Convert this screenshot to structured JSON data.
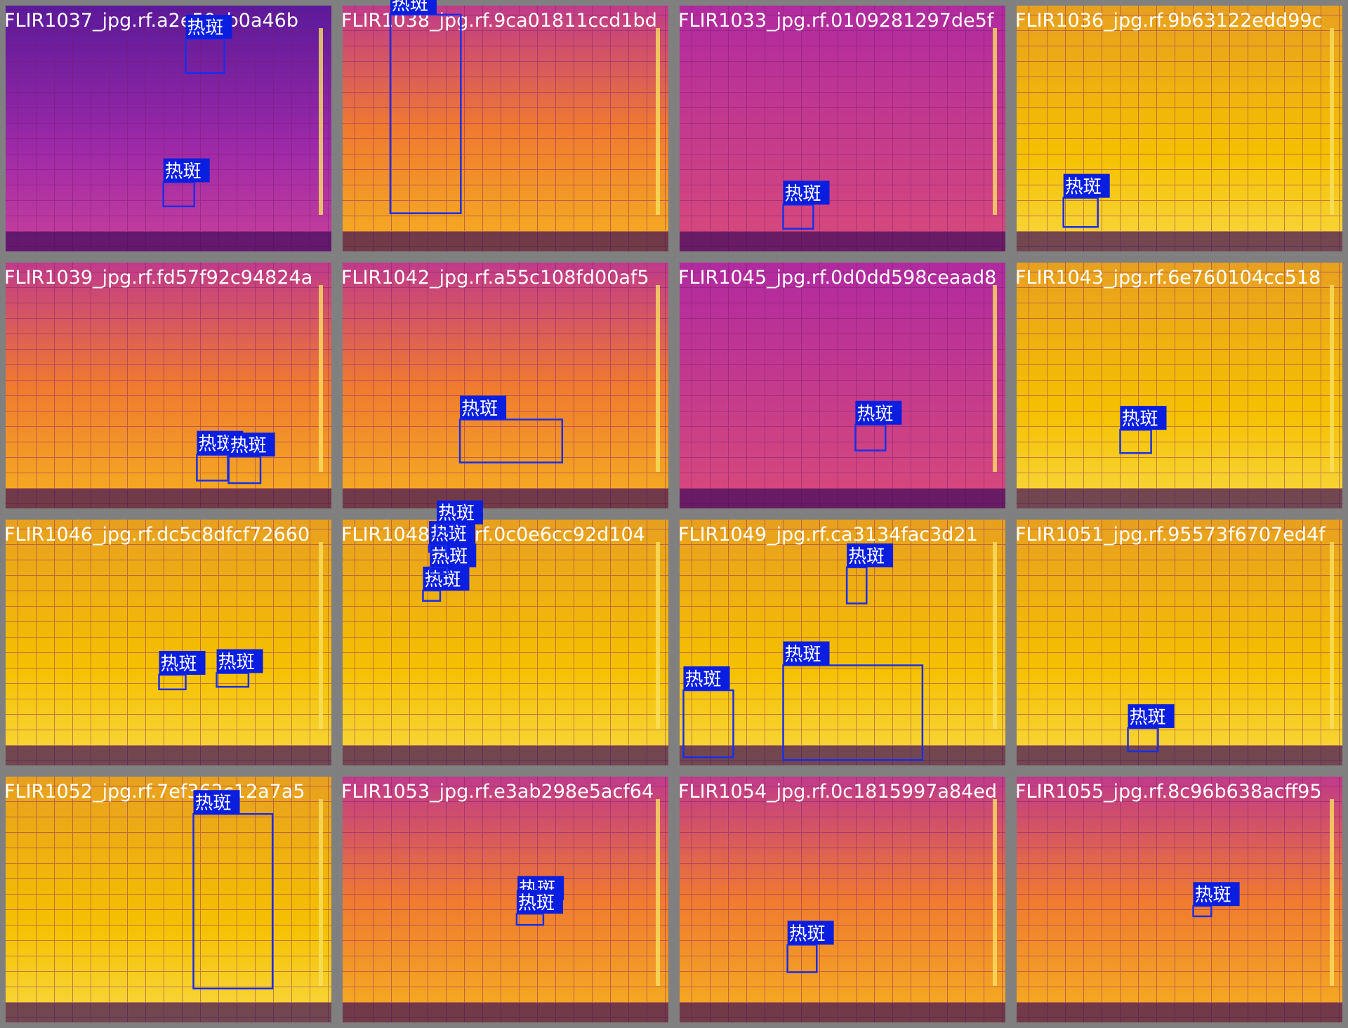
{
  "tiles": [
    {
      "name": "FLIR1037_jpg.rf.a2e59cb0a46b",
      "boxes": [
        {
          "label": "热斑"
        },
        {
          "label": "热斑"
        }
      ]
    },
    {
      "name": "FLIR1038_jpg.rf.9ca01811ccd1bd",
      "boxes": [
        {
          "label": "热斑"
        }
      ]
    },
    {
      "name": "FLIR1033_jpg.rf.0109281297de5f",
      "boxes": [
        {
          "label": "热斑"
        }
      ]
    },
    {
      "name": "FLIR1036_jpg.rf.9b63122edd99c",
      "boxes": [
        {
          "label": "热斑"
        }
      ]
    },
    {
      "name": "FLIR1039_jpg.rf.fd57f92c94824a",
      "boxes": [
        {
          "label": "热斑"
        },
        {
          "label": "热斑"
        }
      ]
    },
    {
      "name": "FLIR1042_jpg.rf.a55c108fd00af5",
      "boxes": [
        {
          "label": "热斑"
        }
      ]
    },
    {
      "name": "FLIR1045_jpg.rf.0d0dd598ceaad8",
      "boxes": [
        {
          "label": "热斑"
        }
      ]
    },
    {
      "name": "FLIR1043_jpg.rf.6e760104cc518",
      "boxes": [
        {
          "label": "热斑"
        }
      ]
    },
    {
      "name": "FLIR1046_jpg.rf.dc5c8dfcf72660",
      "boxes": [
        {
          "label": "热斑"
        },
        {
          "label": "热斑"
        }
      ]
    },
    {
      "name": "FLIR1048_jpg.rf.0c0e6cc92d104",
      "boxes": [
        {
          "label": "热斑"
        },
        {
          "label": "热斑"
        },
        {
          "label": "热斑"
        },
        {
          "label": "热斑"
        }
      ]
    },
    {
      "name": "FLIR1049_jpg.rf.ca3134fac3d21",
      "boxes": [
        {
          "label": "热斑"
        },
        {
          "label": "热斑"
        },
        {
          "label": "热斑"
        }
      ]
    },
    {
      "name": "FLIR1051_jpg.rf.95573f6707ed4f",
      "boxes": [
        {
          "label": "热斑"
        }
      ]
    },
    {
      "name": "FLIR1052_jpg.rf.7ef362c12a7a5",
      "boxes": [
        {
          "label": "热斑"
        }
      ]
    },
    {
      "name": "FLIR1053_jpg.rf.e3ab298e5acf64",
      "boxes": [
        {
          "label": "热斑"
        },
        {
          "label": "热斑"
        }
      ]
    },
    {
      "name": "FLIR1054_jpg.rf.0c1815997a84ed",
      "boxes": [
        {
          "label": "热斑"
        }
      ]
    },
    {
      "name": "FLIR1055_jpg.rf.8c96b638acff95",
      "boxes": [
        {
          "label": "热斑"
        }
      ]
    }
  ]
}
